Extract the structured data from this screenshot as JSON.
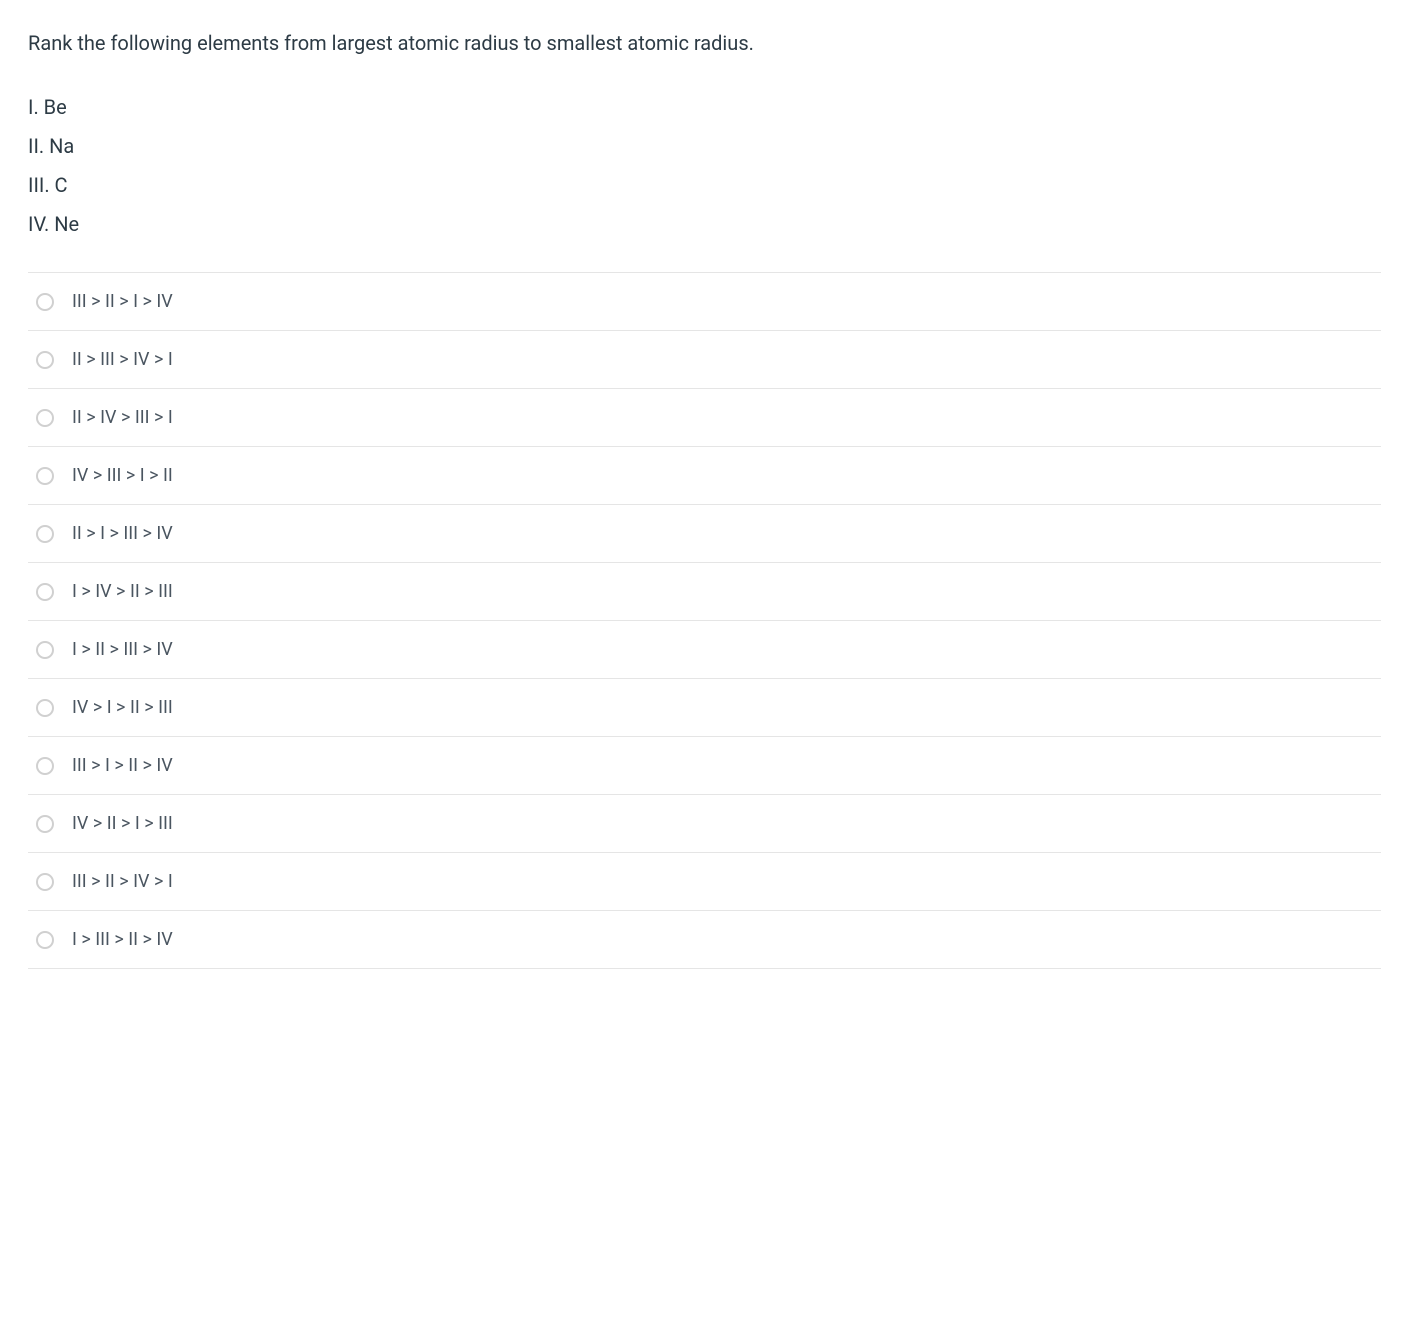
{
  "question": {
    "prompt": "Rank the following elements from largest atomic radius to smallest atomic radius.",
    "items": [
      "I. Be",
      "II. Na",
      "III. C",
      "IV. Ne"
    ]
  },
  "options": [
    {
      "label": "III > II > I > IV"
    },
    {
      "label": "II > III > IV > I"
    },
    {
      "label": "II > IV > III > I"
    },
    {
      "label": "IV > III > I > II"
    },
    {
      "label": "II > I > III > IV"
    },
    {
      "label": "I > IV > II > III"
    },
    {
      "label": "I > II > III > IV"
    },
    {
      "label": "IV > I > II > III"
    },
    {
      "label": "III > I > II > IV"
    },
    {
      "label": "IV > II > I > III"
    },
    {
      "label": "III > II > IV > I"
    },
    {
      "label": "I > III > II > IV"
    }
  ],
  "colors": {
    "text_primary": "#2d3b45",
    "text_option": "#4a5560",
    "border": "#e5e5e5",
    "radio_border": "#d0d0d0",
    "background": "#ffffff"
  },
  "typography": {
    "question_fontsize": 20,
    "option_fontsize": 18,
    "line_height": 1.5
  }
}
